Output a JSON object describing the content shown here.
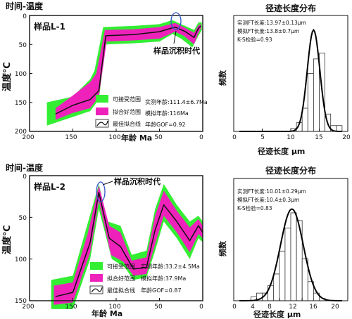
{
  "colors": {
    "acceptable": "#33ee33",
    "good": "#ee22bb",
    "best": "#111111",
    "ellipse": "#3355cc"
  },
  "chart_data": [
    {
      "type": "line",
      "panel_title": "时间-温度",
      "sample_label": "样品L-1",
      "xlabel": "年龄 Ma",
      "ylabel": "温度℃",
      "xlim": [
        200,
        0
      ],
      "ylim": [
        200,
        0
      ],
      "xticks": [
        "200",
        "150",
        "100",
        "50",
        "0"
      ],
      "yticks": [
        "0",
        "50",
        "100",
        "150",
        "200"
      ],
      "annotation": "样品沉积时代",
      "legend": [
        "可接受范围",
        "拟合好范围",
        "最佳拟合线"
      ],
      "stats": [
        "实测年龄:111.4±6.7Ma",
        "模拟年龄:116Ma",
        "年龄GOF=0.92"
      ],
      "series": [
        {
          "values": [
            [
              170,
              170
            ],
            [
              150,
              155
            ],
            [
              130,
              145
            ],
            [
              120,
              130
            ],
            [
              112,
              35
            ],
            [
              80,
              33
            ],
            [
              50,
              28
            ],
            [
              32,
              20
            ],
            [
              20,
              28
            ],
            [
              10,
              38
            ],
            [
              5,
              22
            ],
            [
              2,
              18
            ]
          ]
        }
      ],
      "acceptable_upper": [
        [
          180,
          150
        ],
        [
          150,
          140
        ],
        [
          130,
          110
        ],
        [
          125,
          95
        ],
        [
          115,
          20
        ],
        [
          80,
          18
        ],
        [
          50,
          15
        ],
        [
          35,
          8
        ],
        [
          25,
          15
        ],
        [
          10,
          25
        ],
        [
          5,
          12
        ],
        [
          1,
          12
        ]
      ],
      "acceptable_lower": [
        [
          180,
          190
        ],
        [
          150,
          175
        ],
        [
          130,
          165
        ],
        [
          120,
          145
        ],
        [
          112,
          50
        ],
        [
          80,
          48
        ],
        [
          50,
          45
        ],
        [
          35,
          32
        ],
        [
          25,
          40
        ],
        [
          12,
          55
        ],
        [
          5,
          35
        ],
        [
          1,
          25
        ]
      ],
      "good_upper": [
        [
          170,
          160
        ],
        [
          150,
          138
        ],
        [
          130,
          115
        ],
        [
          123,
          100
        ],
        [
          113,
          25
        ],
        [
          80,
          24
        ],
        [
          50,
          20
        ],
        [
          32,
          13
        ],
        [
          22,
          20
        ],
        [
          10,
          30
        ],
        [
          5,
          17
        ],
        [
          2,
          15
        ]
      ],
      "good_lower": [
        [
          170,
          180
        ],
        [
          150,
          168
        ],
        [
          130,
          160
        ],
        [
          120,
          140
        ],
        [
          111,
          45
        ],
        [
          80,
          43
        ],
        [
          50,
          40
        ],
        [
          32,
          28
        ],
        [
          22,
          35
        ],
        [
          10,
          50
        ],
        [
          5,
          30
        ],
        [
          2,
          22
        ]
      ]
    },
    {
      "type": "bar",
      "panel_title": "径迹长度分布",
      "xlabel": "径迹长度 μm",
      "ylabel": "频数",
      "xlim": [
        0,
        20
      ],
      "xticks": [
        "0",
        "5",
        "10",
        "15",
        "20"
      ],
      "stats": [
        "实测FT长度:13.97±0.13μm",
        "模拟FT长度:13.8±0.7μm",
        "K-S检验=0.93"
      ],
      "bin_edges": [
        10,
        11,
        12,
        13,
        14,
        15,
        16,
        17,
        18,
        19
      ],
      "values": [
        0.01,
        0.03,
        0.08,
        0.2,
        0.25,
        0.27,
        0.06,
        0.02,
        0.02
      ],
      "fit_mean": 14.0,
      "fit_sigma": 1.1,
      "fit_peak": 0.35,
      "ylim": [
        0,
        0.4
      ]
    },
    {
      "type": "line",
      "panel_title": "时间-温度",
      "sample_label": "样品L-2",
      "xlabel": "年龄 Ma",
      "ylabel": "温度℃",
      "xlim": [
        200,
        0
      ],
      "ylim": [
        150,
        0
      ],
      "xticks": [
        "200",
        "150",
        "100",
        "50",
        "0"
      ],
      "yticks": [
        "0",
        "50",
        "100",
        "150"
      ],
      "annotation": "样品沉积时代",
      "legend": [
        "可接受范围",
        "拟合好范围",
        "最佳拟合线"
      ],
      "stats": [
        "实测年龄:33.2±4.5Ma",
        "模拟年龄:37.9Ma",
        "年龄GOF=0.87"
      ],
      "series": [
        {
          "values": [
            [
              170,
              145
            ],
            [
              150,
              140
            ],
            [
              130,
              80
            ],
            [
              120,
              20
            ],
            [
              108,
              75
            ],
            [
              95,
              85
            ],
            [
              80,
              112
            ],
            [
              65,
              110
            ],
            [
              55,
              65
            ],
            [
              45,
              35
            ],
            [
              30,
              55
            ],
            [
              15,
              78
            ],
            [
              5,
              60
            ],
            [
              0,
              68
            ]
          ]
        }
      ],
      "acceptable_upper": [
        [
          175,
          125
        ],
        [
          150,
          120
        ],
        [
          135,
          65
        ],
        [
          120,
          10
        ],
        [
          110,
          55
        ],
        [
          95,
          60
        ],
        [
          82,
          95
        ],
        [
          65,
          90
        ],
        [
          55,
          40
        ],
        [
          45,
          10
        ],
        [
          30,
          35
        ],
        [
          15,
          55
        ],
        [
          5,
          48
        ],
        [
          0,
          55
        ]
      ],
      "acceptable_lower": [
        [
          175,
          160
        ],
        [
          150,
          160
        ],
        [
          130,
          100
        ],
        [
          120,
          40
        ],
        [
          105,
          100
        ],
        [
          90,
          110
        ],
        [
          80,
          125
        ],
        [
          65,
          122
        ],
        [
          55,
          90
        ],
        [
          45,
          55
        ],
        [
          30,
          75
        ],
        [
          15,
          100
        ],
        [
          5,
          75
        ],
        [
          0,
          80
        ]
      ],
      "good_upper": [
        [
          172,
          132
        ],
        [
          150,
          128
        ],
        [
          133,
          70
        ],
        [
          120,
          12
        ],
        [
          108,
          60
        ],
        [
          95,
          68
        ],
        [
          82,
          102
        ],
        [
          65,
          98
        ],
        [
          55,
          48
        ],
        [
          45,
          18
        ],
        [
          30,
          42
        ],
        [
          15,
          62
        ],
        [
          5,
          52
        ],
        [
          0,
          60
        ]
      ],
      "good_lower": [
        [
          172,
          155
        ],
        [
          150,
          152
        ],
        [
          130,
          92
        ],
        [
          120,
          30
        ],
        [
          106,
          95
        ],
        [
          92,
          103
        ],
        [
          80,
          120
        ],
        [
          65,
          118
        ],
        [
          55,
          82
        ],
        [
          45,
          48
        ],
        [
          30,
          68
        ],
        [
          15,
          92
        ],
        [
          5,
          70
        ],
        [
          0,
          75
        ]
      ]
    },
    {
      "type": "bar",
      "panel_title": "径迹长度分布",
      "xlabel": "径迹长度 μm",
      "ylabel": "频数",
      "xlim": [
        0,
        20
      ],
      "xticks": [
        "0",
        "4",
        "8",
        "12",
        "16",
        "20"
      ],
      "stats": [
        "实测FT长度:10.01±0.29μm",
        "模拟FT长度:10.4±0.3μm",
        "K-S检验=0.83"
      ],
      "bin_edges": [
        3,
        4,
        5,
        6,
        7,
        8,
        9,
        10,
        11,
        12,
        13,
        14,
        15
      ],
      "values": [
        0.01,
        0.02,
        0.02,
        0.04,
        0.07,
        0.13,
        0.19,
        0.23,
        0.21,
        0.11,
        0.05,
        0.02
      ],
      "fit_mean": 10.2,
      "fit_sigma": 2.0,
      "fit_peak": 0.24,
      "ylim": [
        0,
        0.32
      ]
    }
  ]
}
